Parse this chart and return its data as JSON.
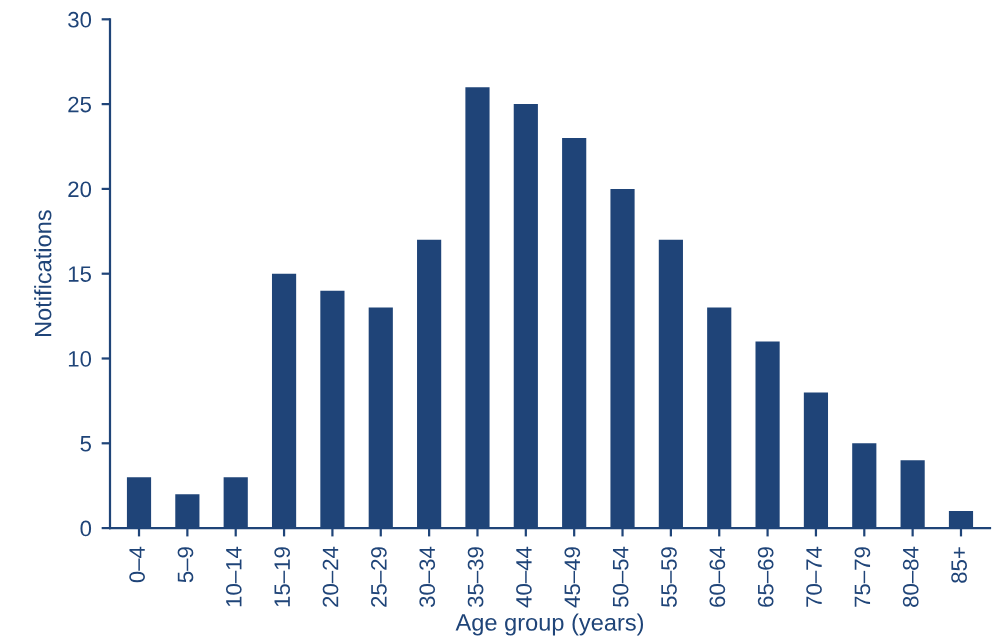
{
  "chart_data": {
    "type": "bar",
    "xlabel": "Age group (years)",
    "ylabel": "Notifications",
    "categories": [
      "0–4",
      "5–9",
      "10–14",
      "15–19",
      "20–24",
      "25–29",
      "30–34",
      "35–39",
      "40–44",
      "45–49",
      "50–54",
      "55–59",
      "60–64",
      "65–69",
      "70–74",
      "75–79",
      "80–84",
      "85+"
    ],
    "values": [
      3,
      2,
      3,
      15,
      14,
      13,
      17,
      26,
      25,
      23,
      20,
      17,
      13,
      11,
      8,
      5,
      4,
      1
    ],
    "color": "#1f4478",
    "ylim": [
      0,
      30
    ],
    "yticks": [
      0,
      5,
      10,
      15,
      20,
      25,
      30
    ],
    "grid": false
  }
}
